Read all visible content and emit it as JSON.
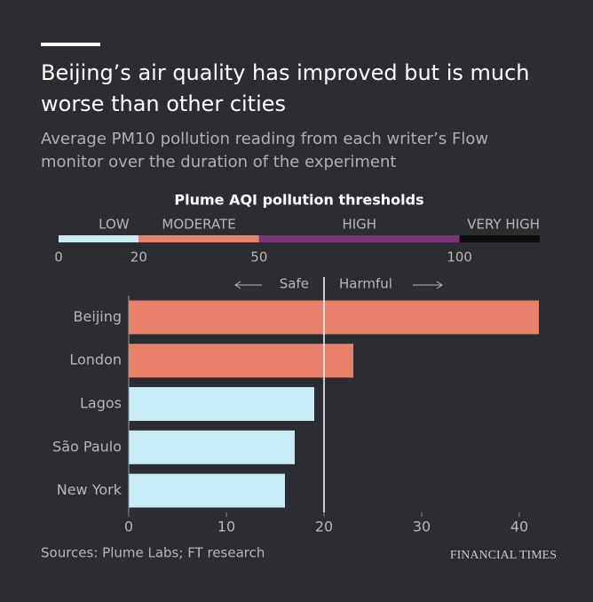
{
  "chart_data": {
    "type": "bar",
    "orientation": "horizontal",
    "title": "Beijing’s air quality has improved but is much worse than other cities",
    "subtitle": "Average PM10 pollution reading from each writer’s Flow monitor over the duration of the experiment",
    "categories": [
      "Beijing",
      "London",
      "Lagos",
      "São Paulo",
      "New York"
    ],
    "values": [
      42,
      23,
      19,
      17,
      16
    ],
    "colors": [
      "#e8806a",
      "#e8806a",
      "#c7ecf8",
      "#c7ecf8",
      "#c7ecf8"
    ],
    "xlim": [
      0,
      42
    ],
    "xticks": [
      0,
      10,
      20,
      30,
      40
    ],
    "threshold_line": 20,
    "annotation_left": "Safe",
    "annotation_right": "Harmful",
    "thresholds": {
      "title": "Plume AQI pollution thresholds",
      "labels": [
        "LOW",
        "MODERATE",
        "HIGH",
        "VERY HIGH"
      ],
      "colors": [
        "#c7ecf8",
        "#e8806a",
        "#7b3479",
        "#0d0d0d"
      ],
      "xlim": [
        0,
        120
      ],
      "xticks": [
        0,
        20,
        50,
        100
      ]
    },
    "source": "Sources: Plume Labs; FT research",
    "brand": "FINANCIAL TIMES"
  }
}
